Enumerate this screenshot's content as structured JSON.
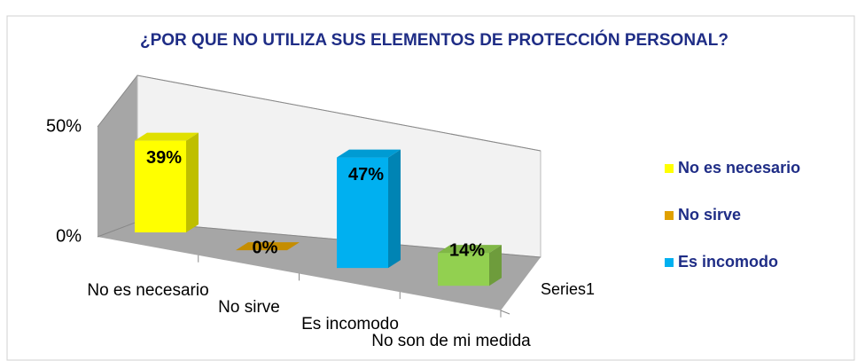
{
  "chart_data": {
    "type": "bar3d",
    "title": "¿POR QUE NO UTILIZA SUS ELEMENTOS DE PROTECCIÓN PERSONAL?",
    "categories": [
      "No es necesario",
      "No sirve",
      "Es incomodo",
      "No son de mi medida"
    ],
    "values": [
      39,
      0,
      47,
      14
    ],
    "value_labels": [
      "39%",
      "0%",
      "47%",
      "14%"
    ],
    "colors": [
      "#ffff00",
      "#e0a000",
      "#00b0f0",
      "#92d050"
    ],
    "series_name": "Series1",
    "ylim": [
      0,
      50
    ],
    "yticks": [
      {
        "value": 0,
        "label": "0%"
      },
      {
        "value": 50,
        "label": "50%"
      }
    ],
    "grid": true,
    "legend": "right"
  }
}
